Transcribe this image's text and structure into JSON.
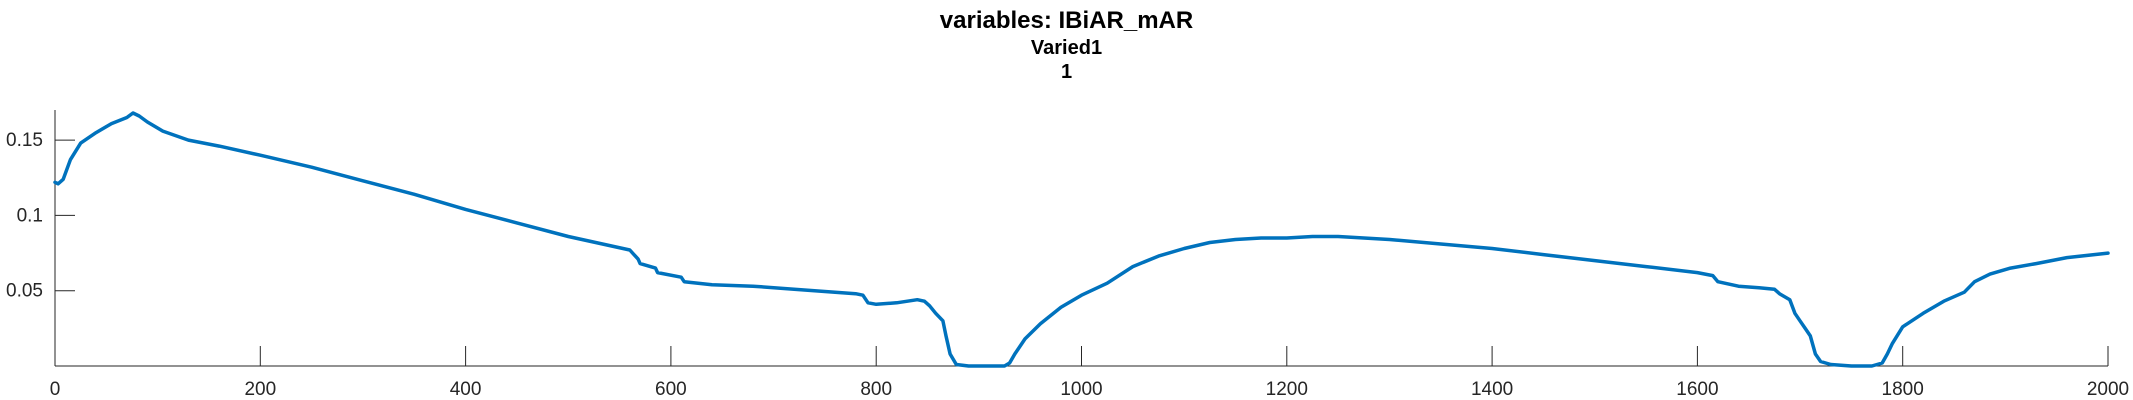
{
  "chart_data": {
    "type": "line",
    "title": "variables: IBiAR_mAR",
    "subtitle": "Varied1",
    "subtitle2": "1",
    "xlim": [
      0,
      2000
    ],
    "ylim": [
      0,
      0.17
    ],
    "xticks": [
      0,
      200,
      400,
      600,
      800,
      1000,
      1200,
      1400,
      1600,
      1800,
      2000
    ],
    "yticks": [
      0.05,
      0.1,
      0.15
    ],
    "ytick_labels": [
      "0.05",
      "0.1",
      "0.15"
    ],
    "color": "#0072BD",
    "grid": false,
    "series": [
      {
        "x": [
          0,
          3,
          8,
          15,
          25,
          40,
          55,
          70,
          76,
          82,
          90,
          105,
          130,
          160,
          200,
          250,
          300,
          350,
          400,
          450,
          500,
          560,
          568,
          570,
          585,
          587,
          610,
          613,
          640,
          680,
          720,
          760,
          780,
          787,
          792,
          800,
          820,
          840,
          847,
          852,
          858,
          865,
          868,
          872,
          878,
          890,
          910,
          925,
          930,
          935,
          945,
          960,
          980,
          1000,
          1025,
          1050,
          1075,
          1100,
          1125,
          1150,
          1175,
          1200,
          1225,
          1250,
          1275,
          1300,
          1350,
          1400,
          1450,
          1500,
          1550,
          1600,
          1615,
          1620,
          1640,
          1660,
          1675,
          1680,
          1690,
          1695,
          1700,
          1705,
          1710,
          1715,
          1720,
          1730,
          1750,
          1770,
          1780,
          1785,
          1790,
          1800,
          1820,
          1840,
          1860,
          1870,
          1885,
          1905,
          1930,
          1960,
          2000
        ],
        "y": [
          0.122,
          0.121,
          0.124,
          0.137,
          0.148,
          0.155,
          0.161,
          0.165,
          0.168,
          0.166,
          0.162,
          0.156,
          0.15,
          0.146,
          0.14,
          0.132,
          0.123,
          0.114,
          0.104,
          0.095,
          0.086,
          0.077,
          0.071,
          0.068,
          0.065,
          0.062,
          0.059,
          0.056,
          0.054,
          0.053,
          0.051,
          0.049,
          0.048,
          0.047,
          0.042,
          0.041,
          0.042,
          0.044,
          0.043,
          0.04,
          0.035,
          0.03,
          0.02,
          0.008,
          0.001,
          0.0,
          0.0,
          0.0,
          0.002,
          0.008,
          0.018,
          0.028,
          0.039,
          0.047,
          0.055,
          0.066,
          0.073,
          0.078,
          0.082,
          0.084,
          0.085,
          0.085,
          0.086,
          0.086,
          0.085,
          0.084,
          0.081,
          0.078,
          0.074,
          0.07,
          0.066,
          0.062,
          0.06,
          0.056,
          0.053,
          0.052,
          0.051,
          0.048,
          0.044,
          0.035,
          0.03,
          0.025,
          0.02,
          0.008,
          0.003,
          0.001,
          0.0,
          0.0,
          0.002,
          0.008,
          0.015,
          0.026,
          0.035,
          0.043,
          0.049,
          0.056,
          0.061,
          0.065,
          0.068,
          0.072,
          0.075
        ]
      }
    ]
  }
}
